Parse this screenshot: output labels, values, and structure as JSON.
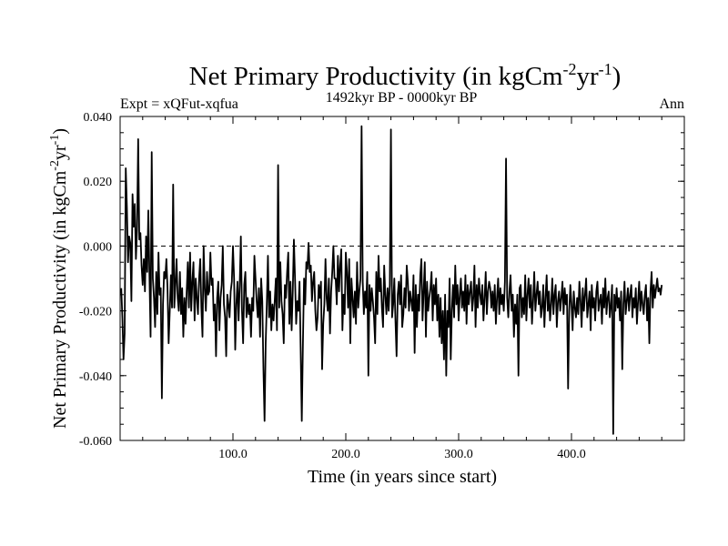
{
  "chart_data": {
    "type": "line",
    "title": "Net Primary Productivity (in kgCm",
    "title_sup1": "-2",
    "title_mid": "yr",
    "title_sup2": "-1",
    "title_end": ")",
    "subtitle": "1492kyr BP - 0000kyr BP",
    "left_note": "Expt = xQFut-xqfua",
    "right_note": "Ann",
    "xlabel": "Time (in years since start)",
    "ylabel": "Net Primary Productivity (in kgCm",
    "ylabel_sup1": "-2",
    "ylabel_mid": "yr",
    "ylabel_sup2": "-1",
    "ylabel_end": ")",
    "xlim": [
      0,
      500
    ],
    "ylim": [
      -0.06,
      0.04
    ],
    "x_ticks": [
      100,
      200,
      300,
      400
    ],
    "x_tick_labels": [
      "100.0",
      "200.0",
      "300.0",
      "400.0"
    ],
    "y_ticks": [
      -0.06,
      -0.04,
      -0.02,
      0.0,
      0.02,
      0.04
    ],
    "y_tick_labels": [
      "-0.060",
      "-0.040",
      "-0.020",
      "0.000",
      "0.020",
      "0.040"
    ],
    "zero_line": 0.0,
    "series": [
      {
        "name": "Net Primary Productivity",
        "x_start": 1,
        "x_step": 1,
        "values": [
          -0.013,
          -0.022,
          -0.035,
          -0.027,
          0.024,
          0.012,
          -0.005,
          0.003,
          0.001,
          -0.017,
          0.016,
          0.006,
          0.013,
          -0.004,
          0.005,
          0.033,
          0.002,
          0.004,
          -0.006,
          -0.012,
          -0.004,
          -0.014,
          0.003,
          -0.008,
          0.011,
          -0.009,
          -0.028,
          0.029,
          -0.01,
          -0.016,
          -0.025,
          -0.008,
          -0.021,
          -0.002,
          -0.015,
          -0.013,
          -0.047,
          -0.018,
          -0.008,
          -0.01,
          -0.004,
          -0.013,
          -0.03,
          -0.02,
          -0.009,
          -0.019,
          0.019,
          -0.019,
          -0.012,
          -0.004,
          -0.016,
          -0.02,
          -0.008,
          -0.021,
          -0.013,
          -0.028,
          -0.016,
          -0.024,
          -0.014,
          -0.005,
          -0.019,
          -0.002,
          -0.02,
          -0.011,
          -0.005,
          -0.023,
          -0.01,
          -0.016,
          -0.021,
          -0.01,
          -0.004,
          -0.019,
          -0.028,
          0.0,
          -0.013,
          -0.02,
          -0.008,
          -0.015,
          -0.014,
          -0.002,
          -0.012,
          -0.01,
          -0.023,
          -0.018,
          -0.034,
          -0.016,
          -0.011,
          -0.026,
          -0.016,
          -0.012,
          0.0,
          -0.018,
          -0.022,
          -0.034,
          -0.015,
          -0.018,
          -0.022,
          -0.014,
          -0.011,
          0.0,
          -0.01,
          -0.032,
          -0.018,
          -0.011,
          -0.023,
          -0.012,
          0.003,
          -0.02,
          -0.03,
          -0.012,
          -0.008,
          -0.022,
          -0.016,
          -0.021,
          -0.018,
          -0.028,
          -0.016,
          -0.02,
          -0.003,
          -0.01,
          -0.017,
          -0.022,
          -0.013,
          -0.028,
          -0.01,
          -0.017,
          -0.038,
          -0.054,
          -0.03,
          -0.018,
          -0.003,
          -0.022,
          -0.014,
          -0.026,
          -0.018,
          -0.023,
          -0.017,
          -0.01,
          -0.026,
          0.025,
          -0.019,
          -0.005,
          -0.017,
          -0.021,
          -0.03,
          -0.012,
          -0.016,
          -0.008,
          -0.002,
          -0.024,
          -0.011,
          -0.026,
          -0.014,
          0.002,
          -0.01,
          -0.024,
          -0.017,
          -0.02,
          -0.011,
          -0.032,
          -0.054,
          -0.03,
          -0.01,
          -0.018,
          -0.005,
          -0.007,
          0.001,
          -0.008,
          -0.006,
          -0.017,
          -0.011,
          -0.008,
          -0.02,
          -0.026,
          -0.022,
          -0.012,
          -0.016,
          -0.011,
          -0.038,
          -0.024,
          -0.018,
          -0.004,
          -0.016,
          -0.02,
          -0.01,
          -0.027,
          -0.014,
          -0.008,
          0.0,
          -0.01,
          -0.01,
          -0.018,
          -0.003,
          -0.014,
          -0.006,
          -0.001,
          -0.026,
          -0.015,
          -0.021,
          -0.002,
          -0.008,
          -0.019,
          -0.004,
          -0.03,
          -0.01,
          -0.016,
          -0.022,
          -0.014,
          -0.024,
          -0.005,
          -0.019,
          -0.014,
          -0.01,
          0.037,
          -0.011,
          -0.021,
          -0.014,
          -0.019,
          -0.008,
          -0.04,
          -0.012,
          -0.02,
          -0.013,
          -0.017,
          -0.022,
          -0.03,
          -0.008,
          -0.021,
          -0.003,
          -0.014,
          -0.01,
          -0.019,
          -0.025,
          -0.006,
          -0.015,
          -0.021,
          -0.013,
          -0.02,
          -0.012,
          0.036,
          -0.022,
          -0.018,
          -0.01,
          -0.023,
          -0.034,
          -0.015,
          -0.011,
          -0.018,
          -0.009,
          -0.025,
          -0.021,
          -0.013,
          -0.019,
          -0.006,
          -0.011,
          -0.02,
          -0.014,
          -0.017,
          -0.02,
          -0.009,
          -0.033,
          -0.012,
          -0.025,
          -0.015,
          -0.02,
          -0.009,
          -0.004,
          -0.023,
          -0.014,
          -0.005,
          -0.028,
          -0.011,
          -0.02,
          -0.016,
          -0.013,
          -0.008,
          -0.023,
          -0.012,
          -0.018,
          -0.01,
          -0.023,
          -0.015,
          -0.028,
          -0.016,
          -0.03,
          -0.02,
          -0.035,
          -0.015,
          -0.04,
          -0.02,
          -0.025,
          -0.01,
          -0.035,
          -0.02,
          -0.012,
          -0.022,
          -0.006,
          -0.018,
          -0.012,
          -0.023,
          -0.015,
          -0.01,
          -0.019,
          -0.014,
          -0.02,
          -0.009,
          -0.024,
          -0.012,
          -0.018,
          -0.014,
          -0.011,
          -0.02,
          -0.016,
          -0.006,
          -0.025,
          -0.012,
          -0.019,
          -0.01,
          -0.015,
          -0.018,
          -0.012,
          -0.023,
          -0.016,
          -0.008,
          -0.021,
          -0.014,
          -0.011,
          -0.013,
          -0.019,
          -0.014,
          -0.02,
          -0.012,
          -0.024,
          -0.016,
          -0.01,
          -0.021,
          -0.013,
          -0.018,
          -0.015,
          -0.02,
          -0.011,
          0.027,
          -0.016,
          -0.022,
          -0.014,
          -0.009,
          -0.02,
          -0.015,
          -0.028,
          -0.018,
          -0.024,
          -0.015,
          -0.04,
          -0.013,
          -0.012,
          -0.022,
          -0.016,
          -0.021,
          -0.009,
          -0.023,
          -0.015,
          -0.01,
          -0.019,
          -0.012,
          -0.024,
          -0.017,
          -0.008,
          -0.02,
          -0.015,
          -0.011,
          -0.018,
          -0.014,
          -0.022,
          -0.019,
          -0.012,
          -0.025,
          -0.016,
          -0.009,
          -0.02,
          -0.014,
          -0.023,
          -0.018,
          -0.01,
          -0.021,
          -0.015,
          -0.012,
          -0.025,
          -0.017,
          -0.014,
          -0.02,
          -0.016,
          -0.011,
          -0.021,
          -0.013,
          -0.018,
          -0.015,
          -0.044,
          -0.02,
          -0.012,
          -0.018,
          -0.026,
          -0.014,
          -0.019,
          -0.022,
          -0.016,
          -0.021,
          -0.011,
          -0.017,
          -0.025,
          -0.013,
          -0.02,
          -0.015,
          -0.01,
          -0.022,
          -0.018,
          -0.014,
          -0.026,
          -0.012,
          -0.019,
          -0.016,
          -0.023,
          -0.014,
          -0.011,
          -0.02,
          -0.017,
          -0.015,
          -0.024,
          -0.013,
          -0.019,
          -0.01,
          -0.021,
          -0.016,
          -0.014,
          -0.022,
          -0.018,
          -0.012,
          -0.058,
          -0.015,
          -0.02,
          -0.013,
          -0.019,
          -0.016,
          -0.023,
          -0.014,
          -0.038,
          -0.018,
          -0.011,
          -0.021,
          -0.017,
          -0.013,
          -0.02,
          -0.015,
          -0.012,
          -0.022,
          -0.016,
          -0.019,
          -0.013,
          -0.024,
          -0.017,
          -0.011,
          -0.02,
          -0.014,
          -0.018,
          -0.021,
          -0.015,
          -0.012,
          -0.023,
          -0.016,
          -0.03,
          -0.014,
          -0.008,
          -0.019,
          -0.012,
          -0.016,
          -0.013,
          -0.01,
          -0.014,
          -0.013,
          -0.015,
          -0.012
        ]
      }
    ]
  }
}
